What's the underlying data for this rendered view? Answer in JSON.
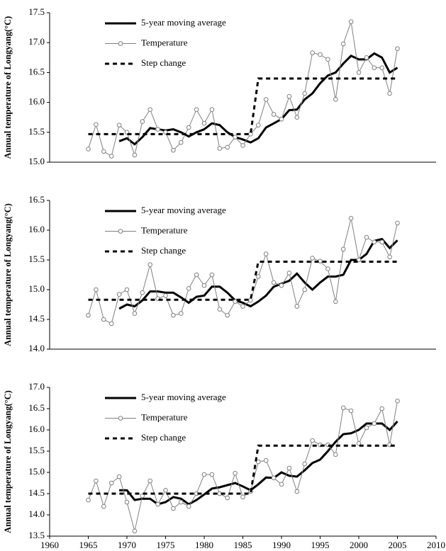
{
  "chart_data": [
    {
      "type": "line",
      "ylabel": "Annual temperature of Longyang(°C)",
      "legend": "upper left",
      "x": [
        1965,
        1966,
        1967,
        1968,
        1969,
        1970,
        1971,
        1972,
        1973,
        1974,
        1975,
        1976,
        1977,
        1978,
        1979,
        1980,
        1981,
        1982,
        1983,
        1984,
        1985,
        1986,
        1987,
        1988,
        1989,
        1990,
        1991,
        1992,
        1993,
        1994,
        1995,
        1996,
        1997,
        1998,
        1999,
        2000,
        2001,
        2002,
        2003,
        2004,
        2005
      ],
      "xlim": [
        1960,
        2010
      ],
      "ylim": [
        15.0,
        17.5
      ],
      "yticks": [
        {
          "value": 15.0,
          "label": "15.0"
        },
        {
          "value": 15.5,
          "label": "15.5"
        },
        {
          "value": 16.0,
          "label": "16.0"
        },
        {
          "value": 16.5,
          "label": "16.5"
        },
        {
          "value": 17.0,
          "label": "17.0"
        },
        {
          "value": 17.5,
          "label": "17.5"
        }
      ],
      "series": [
        {
          "name": "5-year moving average",
          "color": "#000000",
          "values": [
            null,
            null,
            null,
            null,
            15.35,
            15.4,
            15.3,
            15.42,
            15.57,
            15.55,
            15.53,
            15.55,
            15.5,
            15.43,
            15.5,
            15.55,
            15.65,
            15.62,
            15.5,
            15.42,
            15.38,
            15.33,
            15.4,
            15.58,
            15.65,
            15.72,
            15.87,
            15.88,
            16.05,
            16.15,
            16.32,
            16.45,
            16.5,
            16.65,
            16.78,
            16.72,
            16.72,
            16.82,
            16.75,
            16.5,
            16.58
          ]
        },
        {
          "name": "Temperature",
          "color": "#808080",
          "marker": "o",
          "values": [
            15.22,
            15.63,
            15.18,
            15.1,
            15.62,
            15.5,
            15.12,
            15.68,
            15.88,
            15.55,
            15.5,
            15.2,
            15.33,
            15.58,
            15.88,
            15.65,
            15.88,
            15.23,
            15.25,
            15.42,
            15.28,
            15.47,
            15.62,
            16.05,
            15.8,
            15.72,
            16.1,
            15.75,
            16.15,
            16.83,
            16.8,
            16.72,
            16.05,
            16.98,
            17.35,
            16.5,
            16.75,
            16.58,
            16.58,
            16.15,
            16.9
          ]
        },
        {
          "name": "Step change",
          "color": "#000000",
          "dash": true,
          "values": [
            15.47,
            15.47,
            15.47,
            15.47,
            15.47,
            15.47,
            15.47,
            15.47,
            15.47,
            15.47,
            15.47,
            15.47,
            15.47,
            15.47,
            15.47,
            15.47,
            15.47,
            15.47,
            15.47,
            15.47,
            15.47,
            15.47,
            16.4,
            16.4,
            16.4,
            16.4,
            16.4,
            16.4,
            16.4,
            16.4,
            16.4,
            16.4,
            16.4,
            16.4,
            16.4,
            16.4,
            16.4,
            16.4,
            16.4,
            16.4,
            16.4
          ]
        }
      ]
    },
    {
      "type": "line",
      "ylabel": "Annual temperature of Longyang(°C)",
      "legend": "upper left",
      "x": [
        1965,
        1966,
        1967,
        1968,
        1969,
        1970,
        1971,
        1972,
        1973,
        1974,
        1975,
        1976,
        1977,
        1978,
        1979,
        1980,
        1981,
        1982,
        1983,
        1984,
        1985,
        1986,
        1987,
        1988,
        1989,
        1990,
        1991,
        1992,
        1993,
        1994,
        1995,
        1996,
        1997,
        1998,
        1999,
        2000,
        2001,
        2002,
        2003,
        2004,
        2005
      ],
      "xlim": [
        1960,
        2010
      ],
      "ylim": [
        14.0,
        16.5
      ],
      "yticks": [
        {
          "value": 14.0,
          "label": "14.0"
        },
        {
          "value": 14.5,
          "label": "14.5"
        },
        {
          "value": 15.0,
          "label": "15.0"
        },
        {
          "value": 15.5,
          "label": "15.5"
        },
        {
          "value": 16.0,
          "label": "16.0"
        },
        {
          "value": 16.5,
          "label": "16.5"
        }
      ],
      "series": [
        {
          "name": "5-year moving average",
          "color": "#000000",
          "values": [
            null,
            null,
            null,
            null,
            14.68,
            14.75,
            14.72,
            14.82,
            14.97,
            14.97,
            14.95,
            14.95,
            14.87,
            14.78,
            14.88,
            14.9,
            15.05,
            15.05,
            14.95,
            14.82,
            14.78,
            14.72,
            14.8,
            14.9,
            15.05,
            15.1,
            15.15,
            15.27,
            15.12,
            15.0,
            15.12,
            15.22,
            15.22,
            15.25,
            15.5,
            15.5,
            15.6,
            15.82,
            15.85,
            15.7,
            15.83
          ]
        },
        {
          "name": "Temperature",
          "color": "#808080",
          "marker": "o",
          "values": [
            14.57,
            15.0,
            14.5,
            14.43,
            14.92,
            15.0,
            14.6,
            14.95,
            15.42,
            14.85,
            14.9,
            14.57,
            14.6,
            15.02,
            15.25,
            15.07,
            15.25,
            14.67,
            14.57,
            14.8,
            14.72,
            14.82,
            15.22,
            15.6,
            15.12,
            15.07,
            15.28,
            14.72,
            15.0,
            15.53,
            15.48,
            15.35,
            14.8,
            15.68,
            16.2,
            15.5,
            15.88,
            15.8,
            15.8,
            15.55,
            16.12
          ]
        },
        {
          "name": "Step change",
          "color": "#000000",
          "dash": true,
          "values": [
            14.83,
            14.83,
            14.83,
            14.83,
            14.83,
            14.83,
            14.83,
            14.83,
            14.83,
            14.83,
            14.83,
            14.83,
            14.83,
            14.83,
            14.83,
            14.83,
            14.83,
            14.83,
            14.83,
            14.83,
            14.83,
            14.83,
            15.47,
            15.47,
            15.47,
            15.47,
            15.47,
            15.47,
            15.47,
            15.47,
            15.47,
            15.47,
            15.47,
            15.47,
            15.47,
            15.47,
            15.47,
            15.47,
            15.47,
            15.47,
            15.47
          ]
        }
      ]
    },
    {
      "type": "line",
      "ylabel": "Annual temperature of Longyang(°C)",
      "legend": "upper left",
      "x": [
        1965,
        1966,
        1967,
        1968,
        1969,
        1970,
        1971,
        1972,
        1973,
        1974,
        1975,
        1976,
        1977,
        1978,
        1979,
        1980,
        1981,
        1982,
        1983,
        1984,
        1985,
        1986,
        1987,
        1988,
        1989,
        1990,
        1991,
        1992,
        1993,
        1994,
        1995,
        1996,
        1997,
        1998,
        1999,
        2000,
        2001,
        2002,
        2003,
        2004,
        2005
      ],
      "xlim": [
        1960,
        2010
      ],
      "xticks": [
        1960,
        1965,
        1970,
        1975,
        1980,
        1985,
        1990,
        1995,
        2000,
        2005,
        2010
      ],
      "ylim": [
        13.5,
        17.0
      ],
      "yticks": [
        {
          "value": 13.5,
          "label": "13.5"
        },
        {
          "value": 14.0,
          "label": "14.0"
        },
        {
          "value": 14.5,
          "label": "14.5"
        },
        {
          "value": 15.0,
          "label": "15.0"
        },
        {
          "value": 15.5,
          "label": "15.5"
        },
        {
          "value": 16.0,
          "label": "16.0"
        },
        {
          "value": 16.5,
          "label": "16.5"
        },
        {
          "value": 17.0,
          "label": "17.0"
        }
      ],
      "series": [
        {
          "name": "5-year moving average",
          "color": "#000000",
          "values": [
            null,
            null,
            null,
            null,
            14.58,
            14.58,
            14.35,
            14.38,
            14.38,
            14.25,
            14.3,
            14.42,
            14.38,
            14.25,
            14.35,
            14.48,
            14.62,
            14.65,
            14.7,
            14.75,
            14.67,
            14.58,
            14.72,
            14.88,
            14.87,
            15.0,
            14.92,
            14.9,
            15.05,
            15.22,
            15.3,
            15.5,
            15.72,
            15.9,
            15.92,
            16.0,
            16.15,
            16.15,
            16.15,
            16.0,
            16.2
          ]
        },
        {
          "name": "Temperature",
          "color": "#808080",
          "marker": "o",
          "values": [
            14.35,
            14.8,
            14.2,
            14.75,
            14.9,
            14.3,
            13.62,
            14.45,
            14.8,
            14.25,
            14.58,
            14.15,
            14.3,
            14.2,
            14.5,
            14.95,
            14.95,
            14.5,
            14.4,
            14.98,
            14.42,
            14.55,
            15.25,
            15.28,
            14.87,
            14.72,
            15.1,
            14.55,
            15.2,
            15.75,
            15.65,
            15.65,
            15.42,
            16.52,
            16.45,
            15.68,
            16.05,
            16.15,
            16.5,
            15.65,
            16.68
          ]
        },
        {
          "name": "Step change",
          "color": "#000000",
          "dash": true,
          "values": [
            14.5,
            14.5,
            14.5,
            14.5,
            14.5,
            14.5,
            14.5,
            14.5,
            14.5,
            14.5,
            14.5,
            14.5,
            14.5,
            14.5,
            14.5,
            14.5,
            14.5,
            14.5,
            14.5,
            14.5,
            14.5,
            14.5,
            15.63,
            15.63,
            15.63,
            15.63,
            15.63,
            15.63,
            15.63,
            15.63,
            15.63,
            15.63,
            15.63,
            15.63,
            15.63,
            15.63,
            15.63,
            15.63,
            15.63,
            15.63,
            15.63
          ]
        }
      ]
    }
  ]
}
